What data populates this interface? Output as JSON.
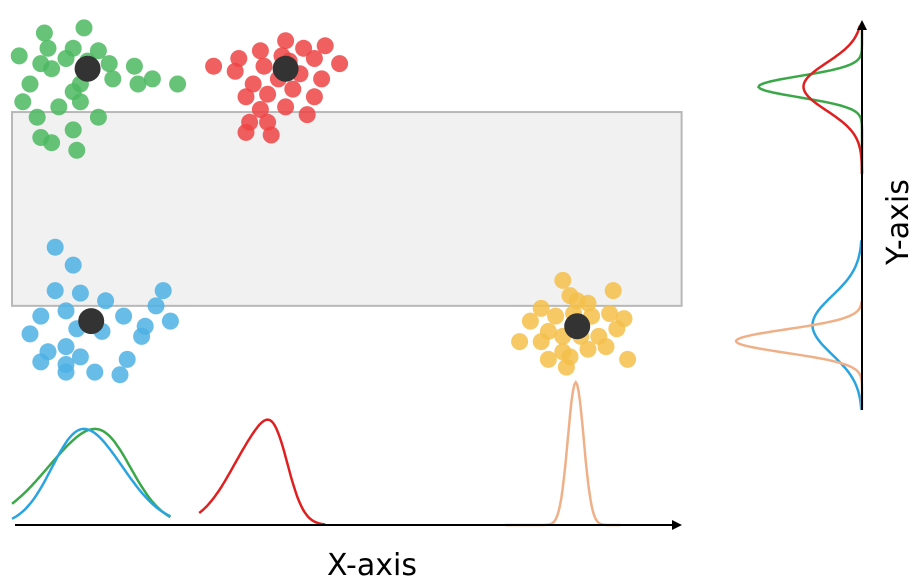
{
  "chart_data": {
    "type": "scatter",
    "xlabel": "X-axis",
    "ylabel": "Y-axis",
    "grid": false,
    "legend": "none",
    "colors": {
      "green": "#4cb960",
      "red": "#ee4444",
      "blue": "#4cb0e4",
      "orange": "#f5c04a",
      "centroid": "#333333",
      "highlight_fill": "#efefef",
      "highlight_stroke": "#b8b8b8",
      "kde_orange": "#efb088",
      "kde_red": "#e02020",
      "kde_green": "#3aa848",
      "kde_blue": "#2aa4e0"
    },
    "highlight_region": {
      "x": [
        0.0,
        9.3
      ],
      "y": [
        1.65,
        5.45
      ]
    },
    "clusters": [
      {
        "id": "green",
        "centroid": [
          1.05,
          6.3
        ],
        "points": [
          [
            0.45,
            7.0
          ],
          [
            1.0,
            7.1
          ],
          [
            0.5,
            6.7
          ],
          [
            0.85,
            6.7
          ],
          [
            1.2,
            6.65
          ],
          [
            0.1,
            6.55
          ],
          [
            0.4,
            6.4
          ],
          [
            0.75,
            6.5
          ],
          [
            1.05,
            6.45
          ],
          [
            1.35,
            6.4
          ],
          [
            1.7,
            6.35
          ],
          [
            0.25,
            6.0
          ],
          [
            0.55,
            6.3
          ],
          [
            0.95,
            6.0
          ],
          [
            1.4,
            6.1
          ],
          [
            1.75,
            6.0
          ],
          [
            1.95,
            6.1
          ],
          [
            2.3,
            6.0
          ],
          [
            0.15,
            5.65
          ],
          [
            0.85,
            5.85
          ],
          [
            0.95,
            5.65
          ],
          [
            0.65,
            5.55
          ],
          [
            0.35,
            5.35
          ],
          [
            1.2,
            5.35
          ],
          [
            0.85,
            5.1
          ],
          [
            0.55,
            4.85
          ],
          [
            0.9,
            4.7
          ],
          [
            0.4,
            4.95
          ]
        ]
      },
      {
        "id": "red",
        "centroid": [
          3.8,
          6.3
        ],
        "points": [
          [
            3.8,
            6.85
          ],
          [
            3.45,
            6.65
          ],
          [
            3.75,
            6.55
          ],
          [
            4.05,
            6.7
          ],
          [
            4.35,
            6.75
          ],
          [
            3.15,
            6.5
          ],
          [
            3.5,
            6.35
          ],
          [
            3.85,
            6.45
          ],
          [
            4.2,
            6.5
          ],
          [
            4.55,
            6.4
          ],
          [
            2.8,
            6.35
          ],
          [
            3.1,
            6.25
          ],
          [
            3.35,
            6.0
          ],
          [
            3.7,
            6.1
          ],
          [
            4.0,
            6.2
          ],
          [
            4.3,
            6.1
          ],
          [
            3.55,
            5.8
          ],
          [
            3.9,
            5.9
          ],
          [
            4.2,
            5.75
          ],
          [
            3.25,
            5.75
          ],
          [
            3.45,
            5.5
          ],
          [
            3.8,
            5.55
          ],
          [
            4.1,
            5.4
          ],
          [
            3.55,
            5.25
          ],
          [
            3.3,
            5.25
          ],
          [
            3.25,
            5.05
          ],
          [
            3.6,
            5.0
          ]
        ]
      },
      {
        "id": "blue",
        "centroid": [
          1.1,
          1.35
        ],
        "points": [
          [
            0.6,
            2.8
          ],
          [
            0.85,
            2.45
          ],
          [
            0.6,
            1.95
          ],
          [
            0.95,
            1.9
          ],
          [
            0.4,
            1.45
          ],
          [
            0.75,
            1.55
          ],
          [
            1.3,
            1.75
          ],
          [
            0.25,
            1.1
          ],
          [
            0.9,
            1.2
          ],
          [
            1.25,
            1.15
          ],
          [
            1.55,
            1.45
          ],
          [
            1.85,
            1.25
          ],
          [
            2.0,
            1.65
          ],
          [
            2.1,
            1.95
          ],
          [
            2.2,
            1.35
          ],
          [
            0.5,
            0.75
          ],
          [
            0.75,
            0.85
          ],
          [
            0.75,
            0.5
          ],
          [
            0.4,
            0.55
          ],
          [
            0.95,
            0.65
          ],
          [
            1.15,
            0.35
          ],
          [
            1.6,
            0.6
          ],
          [
            1.8,
            1.05
          ],
          [
            1.5,
            0.3
          ],
          [
            0.75,
            0.35
          ]
        ]
      },
      {
        "id": "orange",
        "centroid": [
          7.85,
          1.25
        ],
        "points": [
          [
            7.65,
            2.15
          ],
          [
            7.75,
            1.85
          ],
          [
            7.85,
            1.75
          ],
          [
            8.0,
            1.7
          ],
          [
            8.35,
            1.95
          ],
          [
            7.35,
            1.6
          ],
          [
            7.55,
            1.45
          ],
          [
            7.8,
            1.5
          ],
          [
            8.05,
            1.45
          ],
          [
            8.3,
            1.5
          ],
          [
            8.5,
            1.4
          ],
          [
            7.2,
            1.35
          ],
          [
            7.45,
            1.15
          ],
          [
            7.65,
            1.05
          ],
          [
            7.9,
            1.05
          ],
          [
            8.15,
            1.05
          ],
          [
            8.4,
            1.2
          ],
          [
            7.05,
            0.95
          ],
          [
            7.35,
            0.95
          ],
          [
            7.65,
            0.75
          ],
          [
            8.0,
            0.8
          ],
          [
            8.25,
            0.85
          ],
          [
            7.75,
            0.65
          ],
          [
            8.55,
            0.6
          ],
          [
            7.45,
            0.6
          ],
          [
            7.7,
            0.45
          ]
        ]
      }
    ],
    "marginal_x": [
      {
        "id": "green",
        "color": "kde_green",
        "mean": 1.15,
        "sd": 0.55,
        "peak": 1.55,
        "range": [
          0.0,
          2.2
        ],
        "skew": 0.35
      },
      {
        "id": "blue",
        "color": "kde_blue",
        "mean": 1.0,
        "sd": 0.48,
        "peak": 1.55,
        "range": [
          0.0,
          2.2
        ],
        "skew": -0.25
      },
      {
        "id": "red",
        "color": "kde_red",
        "mean": 3.55,
        "sd": 0.32,
        "peak": 1.7,
        "range": [
          2.6,
          4.35
        ],
        "skew": 0.6
      },
      {
        "id": "orange",
        "color": "kde_orange",
        "mean": 7.83,
        "sd": 0.11,
        "peak": 2.3,
        "range": [
          6.85,
          8.45
        ],
        "skew": 0
      }
    ],
    "marginal_y": [
      {
        "id": "green",
        "color": "kde_green",
        "mean": 6.1,
        "sd": 0.2,
        "peak": 1.15,
        "range": [
          4.45,
          7.25
        ]
      },
      {
        "id": "red",
        "color": "kde_red",
        "mean": 6.1,
        "sd": 0.45,
        "peak": 0.65,
        "range": [
          4.45,
          7.25
        ]
      },
      {
        "id": "blue",
        "color": "kde_blue",
        "mean": 1.6,
        "sd": 0.55,
        "peak": 0.55,
        "range": [
          0.0,
          3.2
        ]
      },
      {
        "id": "orange",
        "color": "kde_orange",
        "mean": 1.3,
        "sd": 0.22,
        "peak": 1.4,
        "range": [
          0.0,
          2.05
        ]
      }
    ]
  }
}
